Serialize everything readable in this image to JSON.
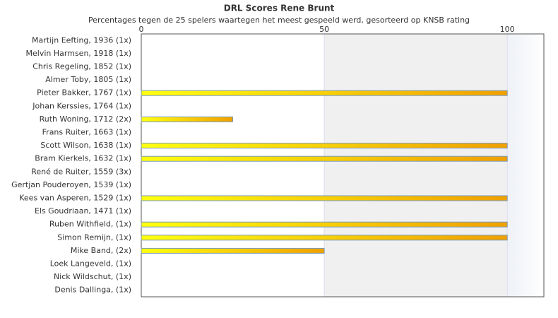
{
  "chart_data": {
    "type": "hbar",
    "title": "DRL Scores Rene Brunt",
    "subtitle": "Percentages tegen de 25 spelers waartegen het meest gespeeld werd, gesorteerd op KNSB rating",
    "categories": [
      "Martijn Eefting, 1936 (1x)",
      "Melvin Harmsen, 1918 (1x)",
      "Chris Regeling, 1852 (1x)",
      "Almer Toby, 1805 (1x)",
      "Pieter Bakker, 1767 (1x)",
      "Johan Kerssies, 1764 (1x)",
      "Ruth Woning, 1712 (2x)",
      "Frans Ruiter, 1663 (1x)",
      "Scott Wilson, 1638 (1x)",
      "Bram Kierkels, 1632 (1x)",
      "René de Ruiter, 1559 (3x)",
      "Gertjan Pouderoyen, 1539 (1x)",
      "Kees van Asperen, 1529 (1x)",
      "Els Goudriaan, 1471 (1x)",
      "Ruben Withfield,  (1x)",
      "Simon Remijn,  (1x)",
      "Mike Band,  (2x)",
      "Loek Langeveld,  (1x)",
      "Nick Wildschut,  (1x)",
      "Denis Dallinga,  (1x)"
    ],
    "values": [
      0,
      0,
      0,
      0,
      100,
      0,
      25,
      0,
      100,
      100,
      0,
      0,
      100,
      0,
      100,
      100,
      50,
      0,
      0,
      0
    ],
    "gradient": [
      "#ffff10",
      "#f0a000"
    ],
    "xlim": [
      0,
      110
    ],
    "xticks": [
      0,
      50,
      100
    ]
  }
}
